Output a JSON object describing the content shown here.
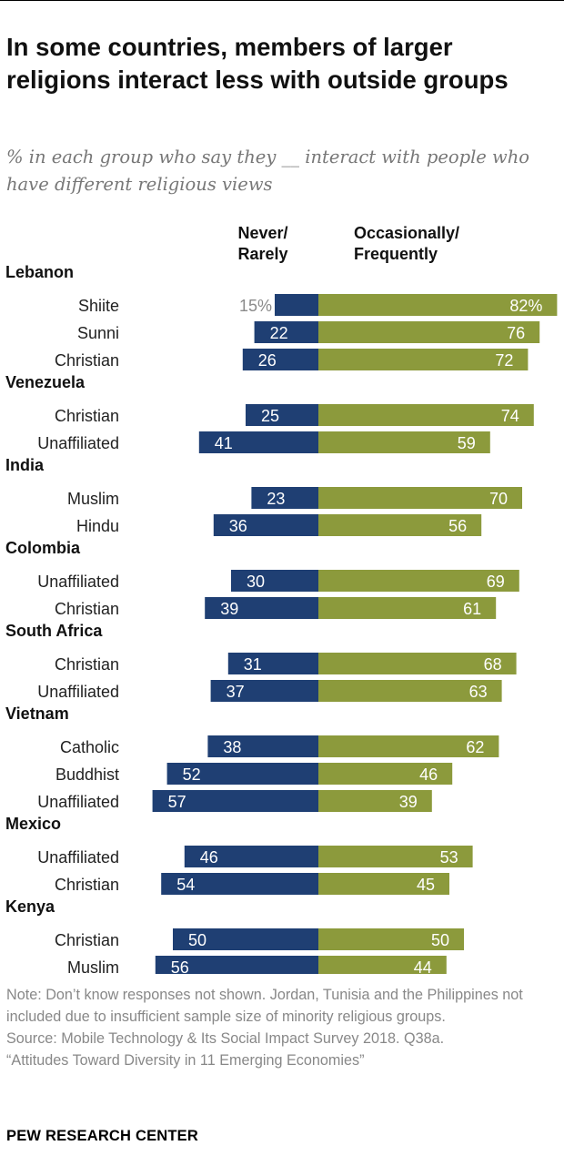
{
  "title": "In some countries, members of larger religions interact less with outside groups",
  "subtitle": "% in each group who say they __ interact with people who have different religious views",
  "notes": {
    "note": "Note: Don’t know responses not shown. Jordan, Tunisia and the Philippines not included due to insufficient sample size of minority religious groups.",
    "source": "Source: Mobile Technology & Its Social Impact Survey 2018. Q38a.",
    "report": "“Attitudes Toward Diversity in 11 Emerging Economies”"
  },
  "brand": "PEW RESEARCH CENTER",
  "colors": {
    "never": "#1f3f73",
    "occasionally": "#8c9a3c",
    "first_label_never": "#8a8a8a"
  },
  "chart_data": {
    "type": "bar",
    "orientation": "horizontal-diverging",
    "unit": "%",
    "series": [
      {
        "key": "never",
        "name": "Never/ Rarely",
        "name_lines": [
          "Never/",
          "Rarely"
        ]
      },
      {
        "key": "occasionally",
        "name": "Occasionally/ Frequently",
        "name_lines": [
          "Occasionally/",
          "Frequently"
        ]
      }
    ],
    "groups": [
      {
        "country": "Lebanon",
        "rows": [
          {
            "label": "Shiite",
            "never": 15,
            "occasionally": 82
          },
          {
            "label": "Sunni",
            "never": 22,
            "occasionally": 76
          },
          {
            "label": "Christian",
            "never": 26,
            "occasionally": 72
          }
        ]
      },
      {
        "country": "Venezuela",
        "rows": [
          {
            "label": "Christian",
            "never": 25,
            "occasionally": 74
          },
          {
            "label": "Unaffiliated",
            "never": 41,
            "occasionally": 59
          }
        ]
      },
      {
        "country": "India",
        "rows": [
          {
            "label": "Muslim",
            "never": 23,
            "occasionally": 70
          },
          {
            "label": "Hindu",
            "never": 36,
            "occasionally": 56
          }
        ]
      },
      {
        "country": "Colombia",
        "rows": [
          {
            "label": "Unaffiliated",
            "never": 30,
            "occasionally": 69
          },
          {
            "label": "Christian",
            "never": 39,
            "occasionally": 61
          }
        ]
      },
      {
        "country": "South Africa",
        "rows": [
          {
            "label": "Christian",
            "never": 31,
            "occasionally": 68
          },
          {
            "label": "Unaffiliated",
            "never": 37,
            "occasionally": 63
          }
        ]
      },
      {
        "country": "Vietnam",
        "rows": [
          {
            "label": "Catholic",
            "never": 38,
            "occasionally": 62
          },
          {
            "label": "Buddhist",
            "never": 52,
            "occasionally": 46
          },
          {
            "label": "Unaffiliated",
            "never": 57,
            "occasionally": 39
          }
        ]
      },
      {
        "country": "Mexico",
        "rows": [
          {
            "label": "Unaffiliated",
            "never": 46,
            "occasionally": 53
          },
          {
            "label": "Christian",
            "never": 54,
            "occasionally": 45
          }
        ]
      },
      {
        "country": "Kenya",
        "rows": [
          {
            "label": "Christian",
            "never": 50,
            "occasionally": 50
          },
          {
            "label": "Muslim",
            "never": 56,
            "occasionally": 44
          }
        ]
      }
    ]
  }
}
